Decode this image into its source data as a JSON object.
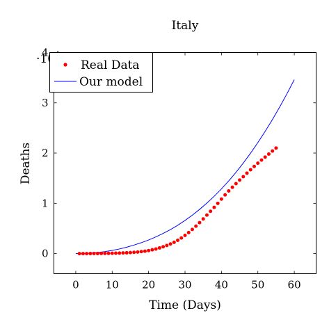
{
  "chart_data": {
    "type": "scatter",
    "title": "Italy",
    "xlabel": "Time (Days)",
    "ylabel": "Deaths",
    "scale_label": "·10",
    "scale_exponent": "4",
    "xlim": [
      -6,
      66
    ],
    "ylim": [
      -0.4,
      4
    ],
    "xticks": [
      0,
      10,
      20,
      30,
      40,
      50,
      60
    ],
    "yticks": [
      0,
      1,
      2,
      3,
      4
    ],
    "legend_position": "top-left",
    "series": [
      {
        "name": "Real Data",
        "kind": "scatter",
        "color": "#ff0000",
        "x": [
          1,
          2,
          3,
          4,
          5,
          6,
          7,
          8,
          9,
          10,
          11,
          12,
          13,
          14,
          15,
          16,
          17,
          18,
          19,
          20,
          21,
          22,
          23,
          24,
          25,
          26,
          27,
          28,
          29,
          30,
          31,
          32,
          33,
          34,
          35,
          36,
          37,
          38,
          39,
          40,
          41,
          42,
          43,
          44,
          45,
          46,
          47,
          48,
          49,
          50,
          51,
          52,
          53,
          54,
          55
        ],
        "y": [
          0.0,
          0.0,
          0.0,
          0.001,
          0.001,
          0.002,
          0.003,
          0.004,
          0.005,
          0.006,
          0.008,
          0.01,
          0.013,
          0.016,
          0.02,
          0.025,
          0.031,
          0.039,
          0.048,
          0.06,
          0.075,
          0.092,
          0.113,
          0.136,
          0.162,
          0.191,
          0.225,
          0.265,
          0.311,
          0.362,
          0.418,
          0.48,
          0.546,
          0.616,
          0.69,
          0.766,
          0.842,
          0.92,
          1.0,
          1.084,
          1.168,
          1.246,
          1.32,
          1.392,
          1.463,
          1.53,
          1.6,
          1.668,
          1.734,
          1.798,
          1.86,
          1.92,
          1.98,
          2.04,
          2.1
        ]
      },
      {
        "name": "Our model",
        "kind": "line",
        "color": "#0000ff",
        "x": [
          0,
          2,
          4,
          6,
          8,
          10,
          12,
          14,
          16,
          18,
          20,
          22,
          24,
          26,
          28,
          30,
          32,
          34,
          36,
          38,
          40,
          42,
          44,
          46,
          48,
          50,
          52,
          54,
          56,
          58,
          60
        ],
        "y": [
          0.0,
          0.003,
          0.01,
          0.022,
          0.04,
          0.063,
          0.092,
          0.128,
          0.17,
          0.217,
          0.27,
          0.332,
          0.401,
          0.478,
          0.564,
          0.659,
          0.764,
          0.879,
          1.004,
          1.14,
          1.287,
          1.446,
          1.617,
          1.801,
          1.998,
          2.208,
          2.431,
          2.667,
          2.917,
          3.181,
          3.46
        ]
      }
    ]
  }
}
